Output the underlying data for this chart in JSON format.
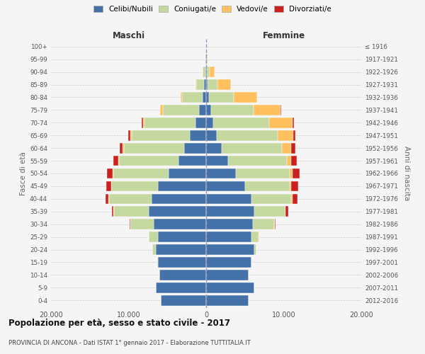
{
  "age_groups": [
    "0-4",
    "5-9",
    "10-14",
    "15-19",
    "20-24",
    "25-29",
    "30-34",
    "35-39",
    "40-44",
    "45-49",
    "50-54",
    "55-59",
    "60-64",
    "65-69",
    "70-74",
    "75-79",
    "80-84",
    "85-89",
    "90-94",
    "95-99",
    "100+"
  ],
  "birth_years": [
    "2012-2016",
    "2007-2011",
    "2002-2006",
    "1997-2001",
    "1992-1996",
    "1987-1991",
    "1982-1986",
    "1977-1981",
    "1972-1976",
    "1967-1971",
    "1962-1966",
    "1957-1961",
    "1952-1956",
    "1947-1951",
    "1942-1946",
    "1937-1941",
    "1932-1936",
    "1927-1931",
    "1922-1926",
    "1917-1921",
    "≤ 1916"
  ],
  "males": {
    "celibi": [
      5800,
      6500,
      6000,
      6200,
      6500,
      6200,
      6800,
      7400,
      7000,
      6200,
      4800,
      3600,
      2800,
      2100,
      1400,
      900,
      500,
      260,
      120,
      60,
      20
    ],
    "coniugati": [
      0,
      0,
      0,
      60,
      400,
      1200,
      3000,
      4500,
      5500,
      6000,
      7200,
      7600,
      7800,
      7500,
      6500,
      4700,
      2600,
      1000,
      300,
      50,
      10
    ],
    "vedovi": [
      0,
      0,
      0,
      0,
      5,
      5,
      10,
      30,
      60,
      80,
      100,
      120,
      170,
      200,
      250,
      300,
      200,
      80,
      30,
      5,
      0
    ],
    "divorziati": [
      0,
      0,
      0,
      0,
      10,
      20,
      80,
      200,
      450,
      600,
      700,
      600,
      400,
      280,
      150,
      60,
      20,
      10,
      5,
      0,
      0
    ]
  },
  "females": {
    "nubili": [
      5500,
      6200,
      5500,
      5800,
      6200,
      5800,
      6000,
      6200,
      5800,
      5000,
      3800,
      2800,
      2000,
      1400,
      900,
      600,
      380,
      220,
      120,
      60,
      20
    ],
    "coniugate": [
      0,
      0,
      0,
      50,
      300,
      1000,
      2800,
      4000,
      5200,
      5800,
      7000,
      7600,
      7800,
      7800,
      7200,
      5500,
      3200,
      1200,
      350,
      60,
      10
    ],
    "vedove": [
      0,
      0,
      0,
      0,
      5,
      5,
      20,
      60,
      120,
      200,
      350,
      600,
      1200,
      2000,
      3000,
      3500,
      3000,
      1800,
      600,
      80,
      5
    ],
    "divorziate": [
      0,
      0,
      0,
      0,
      10,
      30,
      100,
      350,
      700,
      900,
      900,
      700,
      500,
      350,
      200,
      80,
      30,
      15,
      5,
      0,
      0
    ]
  },
  "colors": {
    "celibi": "#4472a8",
    "coniugati": "#c5d8a0",
    "vedovi": "#ffc060",
    "divorziati": "#cc2020"
  },
  "xlim": 20000,
  "xticks": [
    -20000,
    -10000,
    0,
    10000,
    20000
  ],
  "xtick_labels": [
    "20.000",
    "10.000",
    "0",
    "10.000",
    "20.000"
  ],
  "title": "Popolazione per età, sesso e stato civile - 2017",
  "subtitle": "PROVINCIA DI ANCONA - Dati ISTAT 1° gennaio 2017 - Elaborazione TUTTITALIA.IT",
  "ylabel_left": "Fasce di età",
  "ylabel_right": "Anni di nascita",
  "header_left": "Maschi",
  "header_right": "Femmine",
  "legend_labels": [
    "Celibi/Nubili",
    "Coniugati/e",
    "Vedovi/e",
    "Divorziati/e"
  ],
  "bg_color": "#f5f5f5",
  "bar_edge_color": "#ffffff",
  "grid_color": "#cccccc"
}
